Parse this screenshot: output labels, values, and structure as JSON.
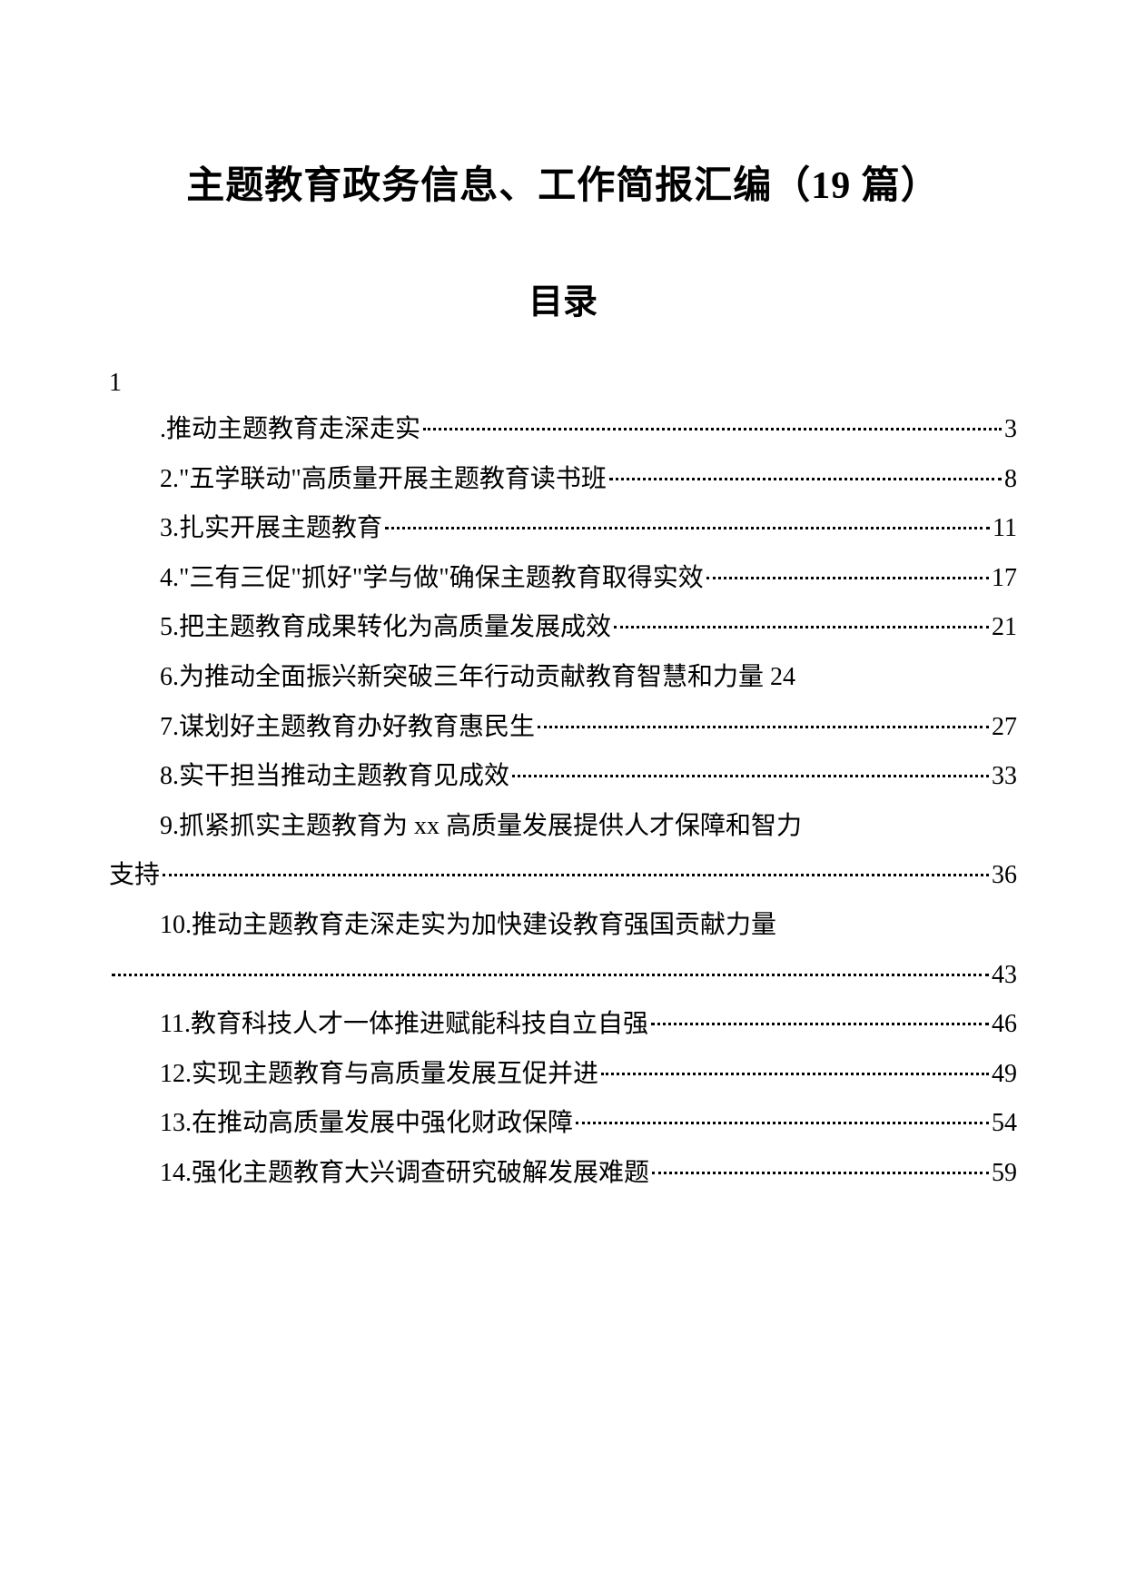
{
  "title": "主题教育政务信息、工作简报汇编（19 篇）",
  "subtitle": "目录",
  "marker": "1",
  "entries": [
    {
      "text": ".推动主题教育走深走实",
      "page": "3",
      "indented": true
    },
    {
      "text": "2.\"五学联动\"高质量开展主题教育读书班",
      "page": "8",
      "indented": true
    },
    {
      "text": "3.扎实开展主题教育",
      "page": "11",
      "indented": true
    },
    {
      "text": "4.\"三有三促\"抓好\"学与做\"确保主题教育取得实效",
      "page": "17",
      "indented": true
    },
    {
      "text": "5.把主题教育成果转化为高质量发展成效",
      "page": "21",
      "indented": true
    },
    {
      "text": "6.为推动全面振兴新突破三年行动贡献教育智慧和力量 24",
      "page": "",
      "indented": true,
      "noPage": true
    },
    {
      "text": "7.谋划好主题教育办好教育惠民生",
      "page": "27",
      "indented": true
    },
    {
      "text": "8.实干担当推动主题教育见成效",
      "page": "33",
      "indented": true
    },
    {
      "text": "9.抓紧抓实主题教育为 xx 高质量发展提供人才保障和智力",
      "page": "",
      "indented": true,
      "noPage": true
    },
    {
      "text": "支持",
      "page": "36",
      "indented": false
    },
    {
      "text": "10.推动主题教育走深走实为加快建设教育强国贡献力量",
      "page": "",
      "indented": true,
      "noPage": true
    },
    {
      "text": "",
      "page": "43",
      "indented": false
    },
    {
      "text": "11.教育科技人才一体推进赋能科技自立自强",
      "page": "46",
      "indented": true
    },
    {
      "text": "12.实现主题教育与高质量发展互促并进",
      "page": "49",
      "indented": true
    },
    {
      "text": "13.在推动高质量发展中强化财政保障",
      "page": "54",
      "indented": true
    },
    {
      "text": "14.强化主题教育大兴调查研究破解发展难题",
      "page": "59",
      "indented": true
    }
  ],
  "colors": {
    "background": "#ffffff",
    "text": "#000000"
  },
  "typography": {
    "title_fontsize": 42,
    "subtitle_fontsize": 38,
    "body_fontsize": 28,
    "font_family": "SimSun"
  }
}
